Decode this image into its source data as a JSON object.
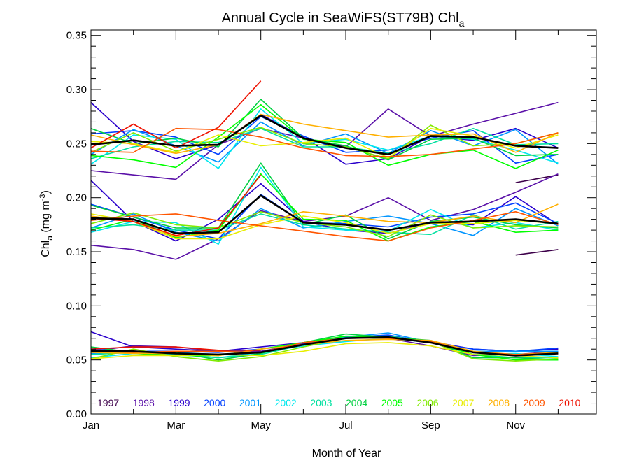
{
  "chart_data": {
    "type": "line",
    "title": "Annual Cycle in SeaWiFS(ST79B) Chl",
    "title_subscript": "a",
    "xlabel": "Month of Year",
    "ylabel": {
      "base": "Chl",
      "sub": "a",
      "units_open": " (mg m",
      "units_sup": "-3",
      "units_close": ")"
    },
    "xlim": [
      1,
      12.9
    ],
    "ylim": [
      0.0,
      0.355
    ],
    "x_ticks": [
      {
        "x": 1,
        "label": "Jan"
      },
      {
        "x": 3,
        "label": "Mar"
      },
      {
        "x": 5,
        "label": "May"
      },
      {
        "x": 7,
        "label": "Jul"
      },
      {
        "x": 9,
        "label": "Sep"
      },
      {
        "x": 11,
        "label": "Nov"
      }
    ],
    "y_ticks": [
      {
        "y": 0.0,
        "label": "0.00"
      },
      {
        "y": 0.05,
        "label": "0.05"
      },
      {
        "y": 0.1,
        "label": "0.10"
      },
      {
        "y": 0.15,
        "label": "0.15"
      },
      {
        "y": 0.2,
        "label": "0.20"
      },
      {
        "y": 0.25,
        "label": "0.25"
      },
      {
        "y": 0.3,
        "label": "0.30"
      },
      {
        "y": 0.35,
        "label": "0.35"
      }
    ],
    "grid": false,
    "legend_placement": "bottom",
    "x": [
      1,
      2,
      3,
      4,
      5,
      6,
      7,
      8,
      9,
      10,
      11,
      12
    ],
    "series": [
      {
        "name": "1997",
        "color": "#3d004a",
        "upper": [
          null,
          null,
          null,
          null,
          null,
          null,
          null,
          null,
          null,
          null,
          0.214,
          0.221
        ],
        "middle": [
          null,
          null,
          null,
          null,
          null,
          null,
          null,
          null,
          null,
          null,
          0.147,
          0.152
        ],
        "lower": [
          null,
          null,
          null,
          null,
          null,
          null,
          null,
          null,
          null,
          null,
          null,
          null
        ]
      },
      {
        "name": "1998",
        "color": "#5a10a8",
        "upper": [
          0.225,
          0.221,
          0.217,
          0.249,
          0.264,
          0.255,
          0.247,
          0.282,
          0.257,
          0.268,
          0.278,
          0.288
        ],
        "middle": [
          0.156,
          0.152,
          0.143,
          0.162,
          0.188,
          0.178,
          0.183,
          0.2,
          0.179,
          0.189,
          0.205,
          0.222
        ],
        "lower": [
          0.058,
          0.063,
          0.062,
          0.058,
          0.058,
          0.065,
          0.07,
          0.07,
          0.063,
          0.054,
          0.055,
          0.058
        ]
      },
      {
        "name": "1999",
        "color": "#2a00cc",
        "upper": [
          0.288,
          0.252,
          0.236,
          0.249,
          0.277,
          0.256,
          0.231,
          0.236,
          0.257,
          0.253,
          0.264,
          0.246
        ],
        "middle": [
          0.216,
          0.178,
          0.16,
          0.18,
          0.213,
          0.178,
          0.17,
          0.167,
          0.177,
          0.175,
          0.201,
          0.175
        ],
        "lower": [
          0.076,
          0.062,
          0.06,
          0.058,
          0.062,
          0.066,
          0.07,
          0.072,
          0.067,
          0.06,
          0.058,
          0.06
        ]
      },
      {
        "name": "2000",
        "color": "#0040ff",
        "upper": [
          0.259,
          0.262,
          0.256,
          0.24,
          0.275,
          0.257,
          0.242,
          0.244,
          0.255,
          0.262,
          0.232,
          0.24
        ],
        "middle": [
          0.194,
          0.182,
          0.17,
          0.162,
          0.203,
          0.177,
          0.176,
          0.173,
          0.182,
          0.185,
          0.195,
          0.176
        ],
        "lower": [
          0.06,
          0.058,
          0.058,
          0.057,
          0.06,
          0.066,
          0.071,
          0.073,
          0.066,
          0.06,
          0.058,
          0.061
        ]
      },
      {
        "name": "2001",
        "color": "#0095ff",
        "upper": [
          0.24,
          0.263,
          0.248,
          0.233,
          0.27,
          0.248,
          0.259,
          0.241,
          0.262,
          0.248,
          0.263,
          0.231
        ],
        "middle": [
          0.172,
          0.185,
          0.168,
          0.16,
          0.19,
          0.172,
          0.178,
          0.183,
          0.176,
          0.165,
          0.19,
          0.174
        ],
        "lower": [
          0.056,
          0.058,
          0.057,
          0.055,
          0.057,
          0.063,
          0.071,
          0.075,
          0.066,
          0.058,
          0.058,
          0.058
        ]
      },
      {
        "name": "2002",
        "color": "#00e8ee",
        "upper": [
          0.231,
          0.258,
          0.254,
          0.227,
          0.282,
          0.25,
          0.254,
          0.244,
          0.257,
          0.254,
          0.244,
          0.232
        ],
        "middle": [
          0.168,
          0.178,
          0.177,
          0.157,
          0.228,
          0.173,
          0.17,
          0.169,
          0.189,
          0.172,
          0.177,
          0.17
        ],
        "lower": [
          0.052,
          0.056,
          0.055,
          0.052,
          0.057,
          0.063,
          0.067,
          0.07,
          0.066,
          0.055,
          0.056,
          0.053
        ]
      },
      {
        "name": "2003",
        "color": "#00e0a0",
        "upper": [
          0.236,
          0.247,
          0.252,
          0.251,
          0.264,
          0.247,
          0.247,
          0.241,
          0.25,
          0.264,
          0.249,
          0.25
        ],
        "middle": [
          0.172,
          0.175,
          0.17,
          0.17,
          0.185,
          0.175,
          0.171,
          0.168,
          0.166,
          0.184,
          0.171,
          0.178
        ],
        "lower": [
          0.055,
          0.057,
          0.055,
          0.052,
          0.055,
          0.064,
          0.072,
          0.072,
          0.067,
          0.055,
          0.052,
          0.052
        ]
      },
      {
        "name": "2004",
        "color": "#00d040",
        "upper": [
          0.264,
          0.25,
          0.255,
          0.247,
          0.291,
          0.255,
          0.248,
          0.235,
          0.254,
          0.255,
          0.239,
          0.24
        ],
        "middle": [
          0.193,
          0.182,
          0.172,
          0.172,
          0.232,
          0.175,
          0.184,
          0.162,
          0.178,
          0.182,
          0.175,
          0.172
        ],
        "lower": [
          0.062,
          0.057,
          0.057,
          0.05,
          0.056,
          0.066,
          0.074,
          0.071,
          0.068,
          0.052,
          0.052,
          0.05
        ]
      },
      {
        "name": "2005",
        "color": "#00ff00",
        "upper": [
          0.239,
          0.235,
          0.228,
          0.256,
          0.286,
          0.254,
          0.251,
          0.23,
          0.24,
          0.244,
          0.227,
          0.244
        ],
        "middle": [
          0.17,
          0.18,
          0.163,
          0.17,
          0.222,
          0.18,
          0.179,
          0.16,
          0.173,
          0.178,
          0.168,
          0.17
        ],
        "lower": [
          0.058,
          0.056,
          0.054,
          0.054,
          0.06,
          0.066,
          0.072,
          0.071,
          0.067,
          0.055,
          0.05,
          0.05
        ]
      },
      {
        "name": "2006",
        "color": "#80ea00",
        "upper": [
          0.242,
          0.26,
          0.243,
          0.254,
          0.265,
          0.25,
          0.247,
          0.236,
          0.267,
          0.248,
          0.25,
          0.26
        ],
        "middle": [
          0.176,
          0.186,
          0.175,
          0.172,
          0.187,
          0.177,
          0.173,
          0.164,
          0.184,
          0.172,
          0.174,
          0.173
        ],
        "lower": [
          0.051,
          0.06,
          0.053,
          0.049,
          0.053,
          0.062,
          0.07,
          0.071,
          0.067,
          0.051,
          0.049,
          0.051
        ]
      },
      {
        "name": "2007",
        "color": "#e8ee00",
        "upper": [
          0.252,
          0.25,
          0.242,
          0.258,
          0.248,
          0.251,
          0.255,
          0.237,
          0.264,
          0.257,
          0.246,
          0.258
        ],
        "middle": [
          0.185,
          0.178,
          0.162,
          0.162,
          0.175,
          0.183,
          0.177,
          0.167,
          0.176,
          0.176,
          0.179,
          0.176
        ],
        "lower": [
          0.051,
          0.054,
          0.054,
          0.055,
          0.054,
          0.058,
          0.065,
          0.066,
          0.063,
          0.055,
          0.054,
          0.052
        ]
      },
      {
        "name": "2008",
        "color": "#ffb000",
        "upper": [
          0.258,
          0.249,
          0.241,
          0.249,
          0.277,
          0.268,
          0.262,
          0.256,
          0.258,
          0.259,
          0.242,
          0.26
        ],
        "middle": [
          0.183,
          0.178,
          0.164,
          0.167,
          0.176,
          0.187,
          0.183,
          0.178,
          0.177,
          0.183,
          0.177,
          0.194
        ],
        "lower": [
          0.057,
          0.056,
          0.056,
          0.054,
          0.06,
          0.064,
          0.068,
          0.069,
          0.068,
          0.058,
          0.055,
          0.057
        ]
      },
      {
        "name": "2009",
        "color": "#ff5500",
        "upper": [
          0.243,
          0.242,
          0.264,
          0.263,
          0.256,
          0.246,
          0.239,
          0.238,
          0.24,
          0.245,
          0.25,
          0.26
        ],
        "middle": [
          0.179,
          0.183,
          0.185,
          0.179,
          0.174,
          0.169,
          0.164,
          0.16,
          0.172,
          0.179,
          0.187,
          0.175
        ],
        "lower": [
          0.058,
          0.057,
          0.058,
          0.058,
          0.057,
          0.066,
          0.07,
          0.07,
          0.067,
          0.057,
          0.055,
          0.056
        ]
      },
      {
        "name": "2010",
        "color": "#ee1100",
        "upper": [
          0.246,
          0.268,
          0.246,
          0.265,
          0.308,
          null,
          null,
          null,
          null,
          null,
          null,
          null
        ],
        "middle": [
          0.181,
          0.178,
          0.165,
          0.172,
          0.221,
          null,
          null,
          null,
          null,
          null,
          null,
          null
        ],
        "lower": [
          0.06,
          0.062,
          0.062,
          0.059,
          0.059,
          null,
          null,
          null,
          null,
          null,
          null,
          null
        ]
      },
      {
        "name": "",
        "color": "#000000",
        "is_mean": true,
        "upper": [
          0.249,
          0.253,
          0.248,
          0.249,
          0.276,
          0.255,
          0.246,
          0.24,
          0.257,
          0.256,
          0.248,
          0.246
        ],
        "middle": [
          0.181,
          0.18,
          0.167,
          0.168,
          0.202,
          0.177,
          0.175,
          0.17,
          0.177,
          0.178,
          0.18,
          0.176
        ],
        "lower": [
          0.058,
          0.058,
          0.056,
          0.055,
          0.057,
          0.064,
          0.07,
          0.071,
          0.066,
          0.057,
          0.054,
          0.056
        ]
      }
    ]
  }
}
